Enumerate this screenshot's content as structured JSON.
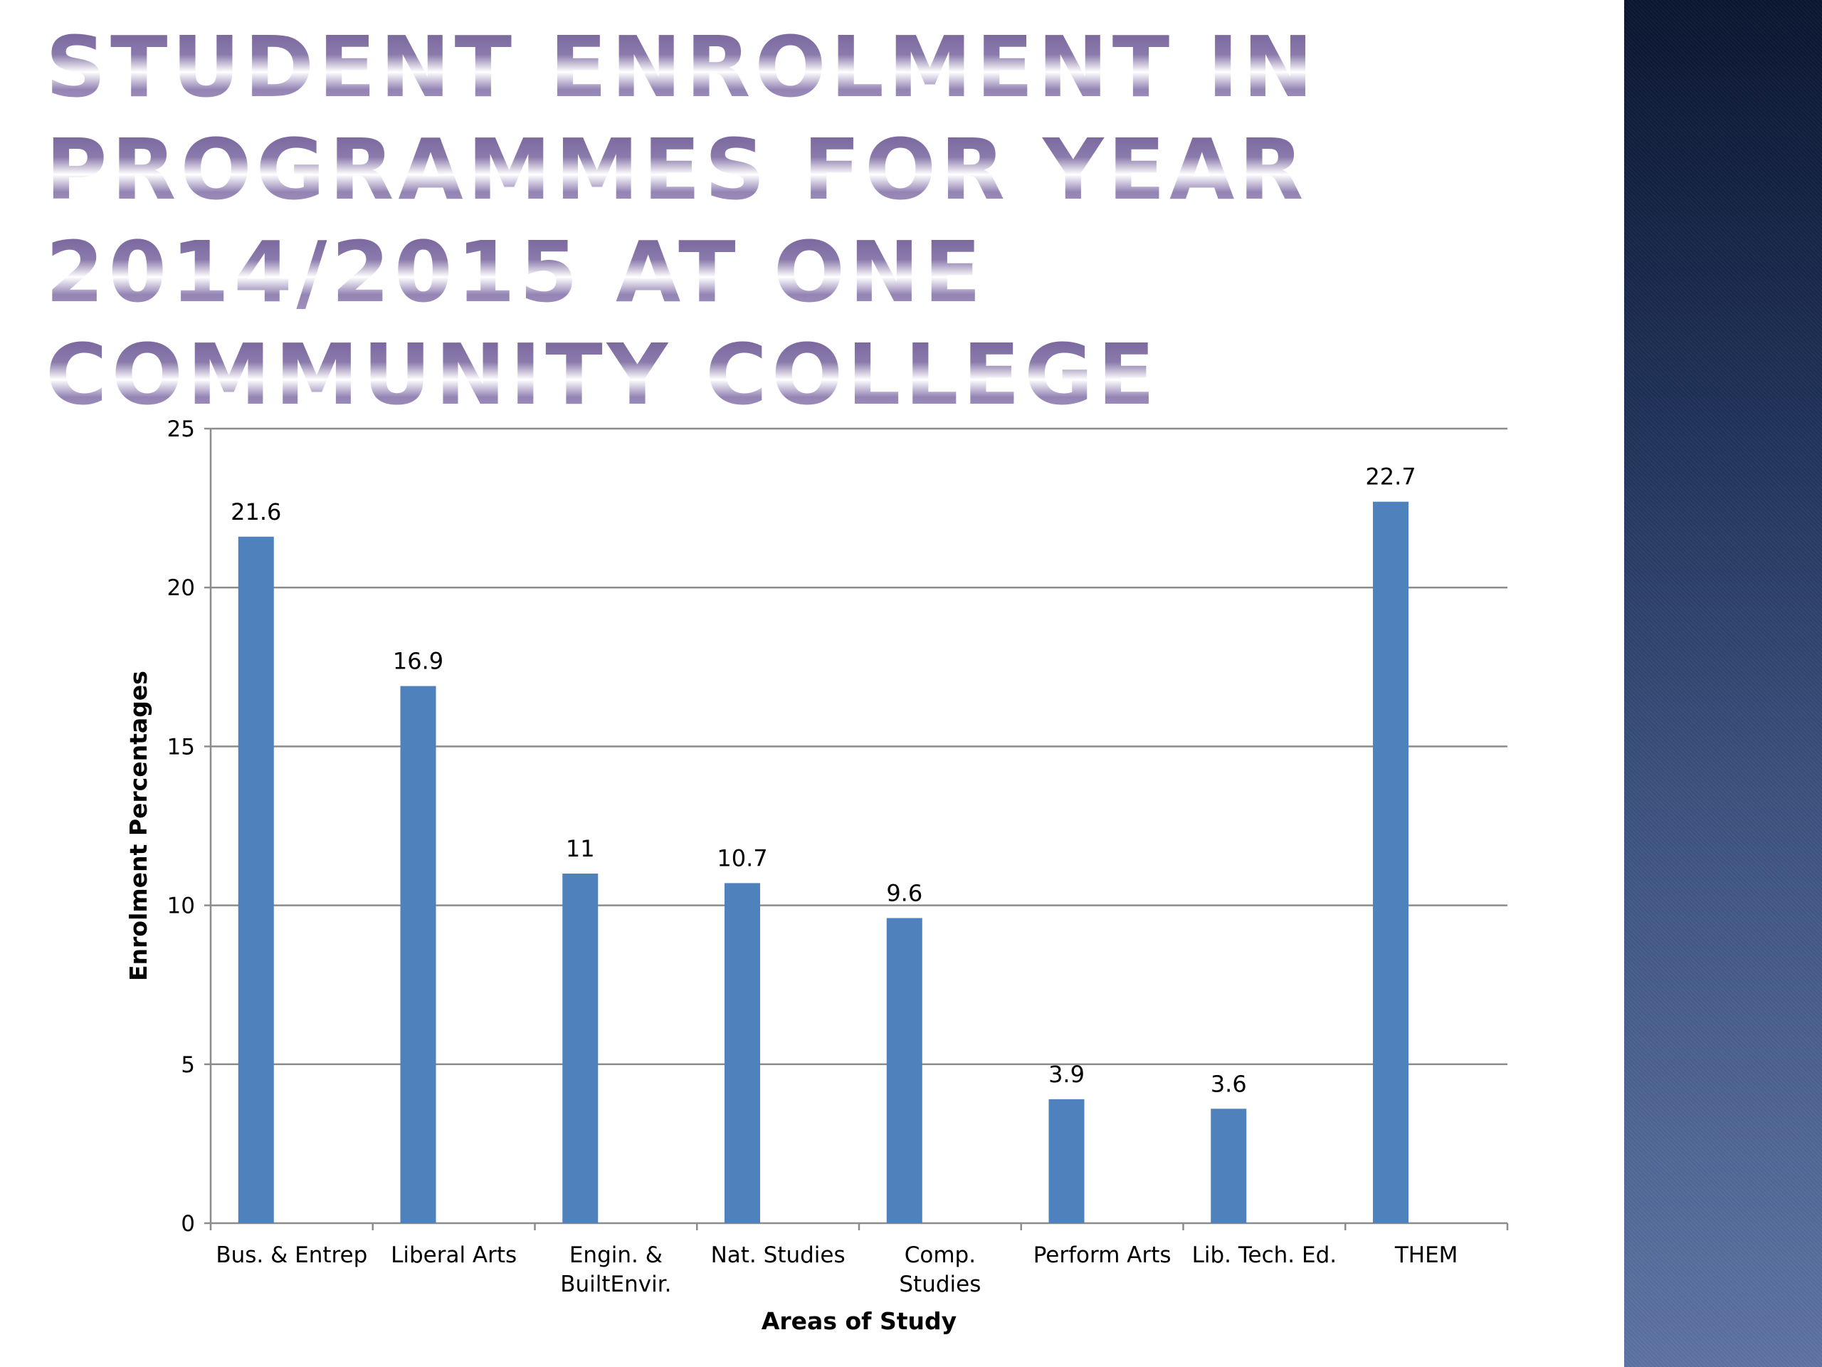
{
  "slide": {
    "title": "Student Enrolment in Programmes for Year 2014/2015 at One Community College",
    "accent_panel_color": "#2b3d66"
  },
  "chart_data": {
    "type": "bar",
    "categories": [
      [
        "Bus. & Entrep"
      ],
      [
        "Liberal Arts"
      ],
      [
        "Engin. &",
        "BuiltEnvir."
      ],
      [
        "Nat. Studies"
      ],
      [
        "Comp.",
        "Studies"
      ],
      [
        "Perform Arts"
      ],
      [
        "Lib. Tech. Ed."
      ],
      [
        "THEM"
      ]
    ],
    "values": [
      21.6,
      16.9,
      11,
      10.7,
      9.6,
      3.9,
      3.6,
      22.7
    ],
    "data_labels": [
      "21.6",
      "16.9",
      "11",
      "10.7",
      "9.6",
      "3.9",
      "3.6",
      "22.7"
    ],
    "xlabel": "Areas of Study",
    "ylabel": "Enrolment Percentages",
    "ylim": [
      0,
      25
    ],
    "yticks": [
      0,
      5,
      10,
      15,
      20,
      25
    ],
    "grid": true,
    "legend": "none",
    "bar_color": "#4f81bd"
  }
}
